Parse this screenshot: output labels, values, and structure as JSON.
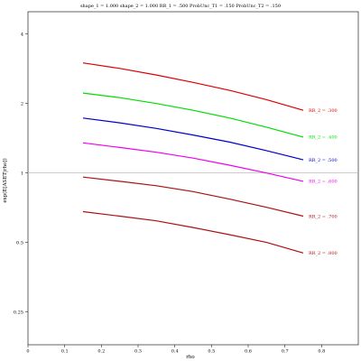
{
  "chart_data": {
    "type": "line",
    "title": "shape_1 = 1.000  shape_2 = 1.000  RR_1 = .500  ProbUnc_T1 = .150  ProbUnc_T2 = .150",
    "xlabel": "rho",
    "ylabel": "exp(E[ASET|rho])",
    "y_scale": "log",
    "xlim": [
      0,
      0.9
    ],
    "ylim": [
      0.18,
      5.0
    ],
    "x_ticks": [
      0,
      0.1,
      0.2,
      0.3,
      0.4,
      0.5,
      0.6,
      0.7,
      0.8
    ],
    "x_tick_labels": [
      "0",
      "0.1",
      "0.2",
      "0.3",
      "0.4",
      "0.5",
      "0.6",
      "0.7",
      "0.8"
    ],
    "y_ticks": [
      0.25,
      0.5,
      1,
      2,
      4
    ],
    "y_tick_labels": [
      "0.25",
      "0.5",
      "1",
      "2",
      "4"
    ],
    "reference_line": 1,
    "grid": false,
    "legend": "labels at right end of each line",
    "x": [
      0.15,
      0.25,
      0.35,
      0.45,
      0.55,
      0.65,
      0.75
    ],
    "series": [
      {
        "name": "RR_2 = .300",
        "color": "#dd0000",
        "values": [
          3.0,
          2.84,
          2.66,
          2.47,
          2.28,
          2.08,
          1.87
        ]
      },
      {
        "name": "RR_2 = .400",
        "color": "#00dd00",
        "values": [
          2.22,
          2.12,
          2.0,
          1.87,
          1.73,
          1.58,
          1.43
        ]
      },
      {
        "name": "RR_2 = .500",
        "color": "#0000cc",
        "values": [
          1.73,
          1.65,
          1.56,
          1.46,
          1.36,
          1.25,
          1.14
        ]
      },
      {
        "name": "RR_2 = .600",
        "color": "#ee00ee",
        "values": [
          1.35,
          1.29,
          1.23,
          1.16,
          1.08,
          1.0,
          0.92
        ]
      },
      {
        "name": "RR_2 = .700",
        "color": "#aa1111",
        "values": [
          0.96,
          0.92,
          0.88,
          0.83,
          0.77,
          0.71,
          0.65
        ]
      },
      {
        "name": "RR_2 = .800",
        "color": "#aa1111",
        "values": [
          0.68,
          0.65,
          0.62,
          0.58,
          0.54,
          0.5,
          0.45
        ]
      }
    ]
  }
}
